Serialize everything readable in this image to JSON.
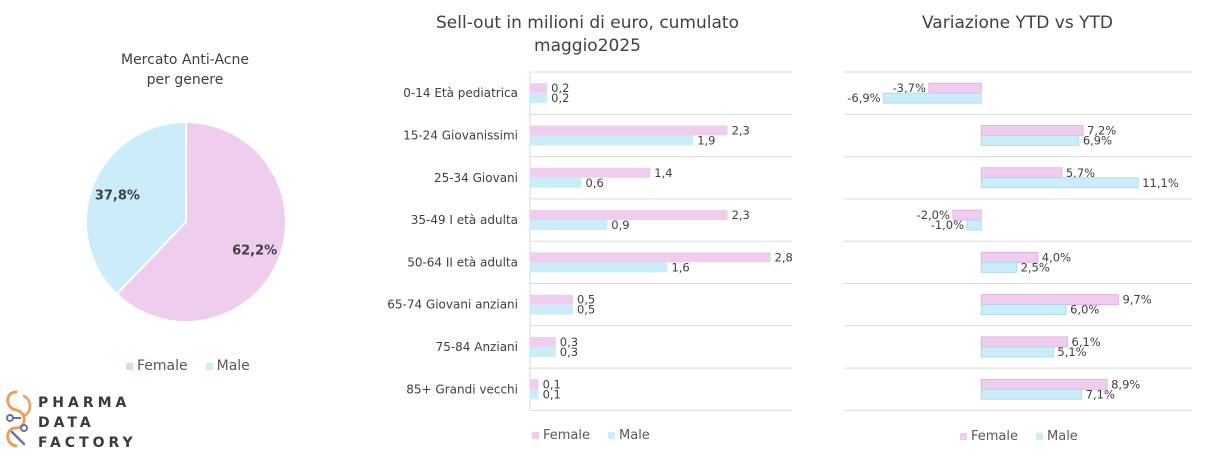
{
  "pie": {
    "title_line1": "Mercato Anti-Acne",
    "title_line2": "per genere",
    "legend_female": "Female",
    "legend_male": "Male"
  },
  "bars": {
    "title_line1": "Sell-out in milioni  di euro, cumulato",
    "title_line2": "maggio2025",
    "legend_female": "Female",
    "legend_male": "Male"
  },
  "ytd": {
    "title": "Variazione YTD vs YTD",
    "legend_female": "Female",
    "legend_male": "Male"
  },
  "logo": {
    "line1": "PHARMA",
    "line2": "DATA",
    "line3": "FACTORY"
  },
  "colors": {
    "female": "#EFCDEE",
    "male": "#CBECF9",
    "female_outline": "#E3A7E1",
    "male_outline": "#9FD9F1",
    "text": "#404040",
    "grid": "#D9D9D9",
    "logo_orange": "#E8A15A",
    "logo_purple": "#6C6FB3"
  },
  "chart_data": [
    {
      "type": "pie",
      "title": "Mercato Anti-Acne per genere",
      "series": [
        {
          "name": "Female",
          "value": 62.2,
          "label": "62,2%"
        },
        {
          "name": "Male",
          "value": 37.8,
          "label": "37,8%"
        }
      ],
      "legend": "bottom"
    },
    {
      "type": "bar",
      "orientation": "horizontal",
      "title": "Sell-out in milioni  di euro, cumulato maggio2025",
      "categories": [
        "0-14 Età pediatrica",
        "15-24 Giovanissimi",
        "25-34 Giovani",
        "35-49 I età adulta",
        "50-64 II età adulta",
        "65-74 Giovani anziani",
        "75-84 Anziani",
        "85+ Grandi vecchi"
      ],
      "series": [
        {
          "name": "Female",
          "values": [
            0.2,
            2.3,
            1.4,
            2.3,
            2.8,
            0.5,
            0.3,
            0.1
          ],
          "labels": [
            "0,2",
            "2,3",
            "1,4",
            "2,3",
            "2,8",
            "0,5",
            "0,3",
            "0,1"
          ]
        },
        {
          "name": "Male",
          "values": [
            0.2,
            1.9,
            0.6,
            0.9,
            1.6,
            0.5,
            0.3,
            0.1
          ],
          "labels": [
            "0,2",
            "1,9",
            "0,6",
            "0,9",
            "1,6",
            "0,5",
            "0,3",
            "0,1"
          ]
        }
      ],
      "xlim": [
        0,
        3.05
      ],
      "grid": true,
      "legend": "bottom"
    },
    {
      "type": "bar",
      "orientation": "horizontal",
      "title": "Variazione YTD vs YTD",
      "categories": [
        "0-14 Età pediatrica",
        "15-24 Giovanissimi",
        "25-34 Giovani",
        "35-49 I età adulta",
        "50-64 II età adulta",
        "65-74 Giovani anziani",
        "75-84 Anziani",
        "85+ Grandi vecchi"
      ],
      "series": [
        {
          "name": "Female",
          "values": [
            -3.7,
            7.2,
            5.7,
            -2.0,
            4.0,
            9.7,
            6.1,
            8.9
          ],
          "labels": [
            "-3,7%",
            "7,2%",
            "5,7%",
            "-2,0%",
            "4,0%",
            "9,7%",
            "6,1%",
            "8,9%"
          ]
        },
        {
          "name": "Male",
          "values": [
            -6.9,
            6.9,
            11.1,
            -1.0,
            2.5,
            6.0,
            5.1,
            7.1
          ],
          "labels": [
            "-6,9%",
            "6,9%",
            "11,1%",
            "-1,0%",
            "2,5%",
            "6,0%",
            "5,1%",
            "7,1%"
          ]
        }
      ],
      "xlim": [
        -9.7,
        14.9
      ],
      "grid": true,
      "legend": "bottom"
    }
  ]
}
